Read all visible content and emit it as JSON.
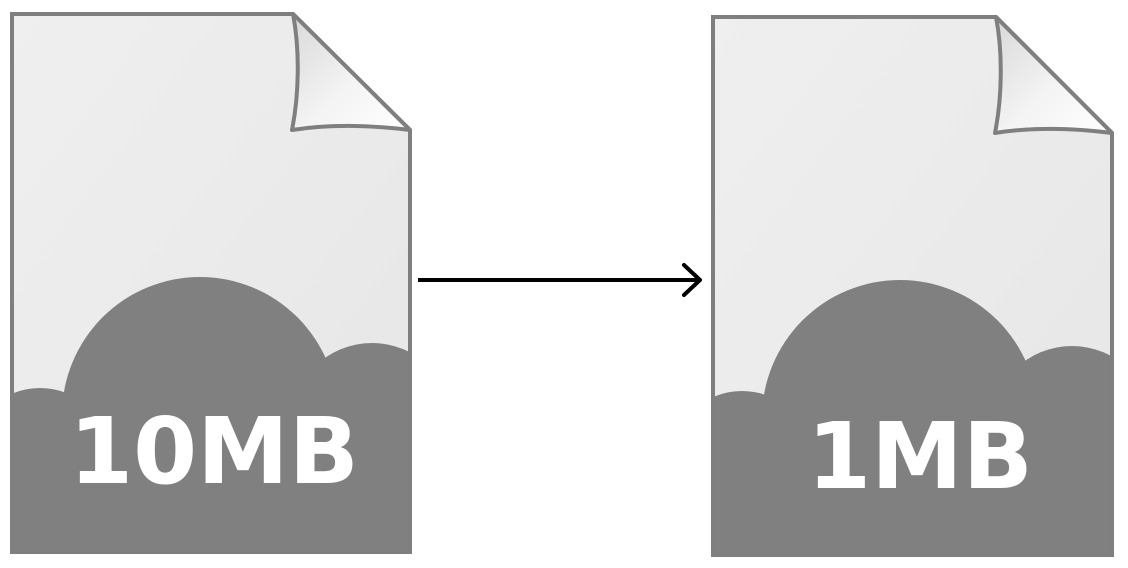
{
  "diagram": {
    "source_file": {
      "size_label": "10MB"
    },
    "target_file": {
      "size_label": "1MB"
    },
    "colors": {
      "page_fill": "#ececec",
      "page_stroke": "#7f7f7f",
      "cloud_fill": "#808080",
      "label_text": "#ffffff",
      "arrow": "#000000",
      "background": "#ffffff"
    },
    "icons": [
      "file-icon",
      "cloud-shape",
      "arrow-right-icon"
    ]
  }
}
